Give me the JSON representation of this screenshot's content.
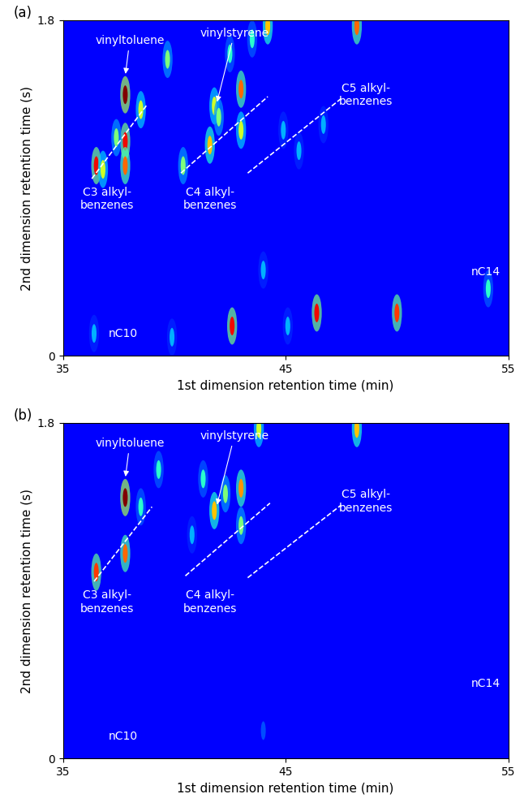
{
  "chart_data": [
    {
      "type": "heatmap",
      "title": "(a)",
      "x_label": "1st dimension retention time (min)",
      "y_label": "2nd dimension retention time (s)",
      "xlim": [
        35,
        55
      ],
      "xticks": [
        35,
        45,
        55
      ],
      "ylim": [
        0,
        1.8
      ],
      "yticks": [
        0,
        1.8
      ],
      "color": "jet",
      "intensity_range": [
        0,
        1
      ],
      "peaks": {
        "x": [
          36.5,
          36.8,
          37.8,
          37.8,
          37.8,
          37.4,
          38.5,
          39.7,
          40.4,
          41.6,
          41.8,
          42.0,
          43.0,
          43.0,
          42.5,
          43.5,
          44.2,
          48.2,
          44.9,
          45.6,
          46.7,
          42.6,
          46.4,
          50.0,
          54.1,
          36.4,
          39.9,
          45.1,
          44.0
        ],
        "y": [
          1.02,
          1.0,
          1.4,
          1.15,
          1.02,
          1.17,
          1.32,
          1.59,
          1.02,
          1.13,
          1.34,
          1.28,
          1.43,
          1.21,
          1.62,
          1.7,
          1.77,
          1.77,
          1.21,
          1.1,
          1.24,
          0.16,
          0.23,
          0.23,
          0.36,
          0.12,
          0.1,
          0.16,
          0.46
        ],
        "intensity": [
          0.9,
          0.6,
          1.0,
          0.9,
          0.8,
          0.5,
          0.6,
          0.5,
          0.5,
          0.7,
          0.6,
          0.5,
          0.8,
          0.6,
          0.4,
          0.4,
          0.7,
          0.8,
          0.3,
          0.3,
          0.3,
          0.9,
          0.9,
          0.85,
          0.4,
          0.3,
          0.3,
          0.3,
          0.3
        ]
      },
      "lines": [
        {
          "x": [
            36.3,
            38.8
          ],
          "y": [
            0.95,
            1.35
          ]
        },
        {
          "x": [
            40.3,
            44.2
          ],
          "y": [
            0.98,
            1.39
          ]
        },
        {
          "x": [
            43.3,
            47.5
          ],
          "y": [
            0.98,
            1.38
          ]
        }
      ],
      "annotations": [
        {
          "text": "vinyltoluene",
          "x": 38.0,
          "y": 1.66,
          "arrow_x": 37.8,
          "arrow_y": 1.5
        },
        {
          "text": "vinylstyrene",
          "x": 42.7,
          "y": 1.7,
          "arrow_x": 41.9,
          "arrow_y": 1.35
        },
        {
          "text": "C3 alkyl-\nbenzenes",
          "x": 37.0,
          "y": 0.84
        },
        {
          "text": "C4 alkyl-\nbenzenes",
          "x": 41.6,
          "y": 0.84
        },
        {
          "text": "C5 alkyl-\nbenzenes",
          "x": 48.6,
          "y": 1.4
        },
        {
          "text": "nC10",
          "x": 37.7,
          "y": 0.12
        },
        {
          "text": "nC14",
          "x": 54.0,
          "y": 0.45
        }
      ]
    },
    {
      "type": "heatmap",
      "title": "(b)",
      "x_label": "1st dimension retention time (min)",
      "y_label": "2nd dimension retention time (s)",
      "xlim": [
        35,
        55
      ],
      "xticks": [
        35,
        45,
        55
      ],
      "ylim": [
        0,
        1.8
      ],
      "yticks": [
        0,
        1.8
      ],
      "color": "jet",
      "intensity_range": [
        0,
        1
      ],
      "peaks": {
        "x": [
          36.5,
          37.8,
          37.8,
          38.5,
          39.3,
          41.8,
          42.3,
          43.0,
          43.0,
          43.8,
          48.2,
          41.3,
          40.8,
          44.0
        ],
        "y": [
          1.0,
          1.4,
          1.1,
          1.35,
          1.55,
          1.33,
          1.42,
          1.45,
          1.25,
          1.77,
          1.77,
          1.5,
          1.2,
          0.15
        ],
        "intensity": [
          0.85,
          1.0,
          0.8,
          0.4,
          0.4,
          0.7,
          0.5,
          0.75,
          0.5,
          0.6,
          0.7,
          0.4,
          0.3,
          0.2
        ]
      },
      "lines": [
        {
          "x": [
            36.4,
            39.0
          ],
          "y": [
            0.95,
            1.35
          ]
        },
        {
          "x": [
            40.5,
            44.3
          ],
          "y": [
            0.98,
            1.37
          ]
        },
        {
          "x": [
            43.3,
            47.5
          ],
          "y": [
            0.97,
            1.36
          ]
        }
      ],
      "annotations": [
        {
          "text": "vinyltoluene",
          "x": 38.0,
          "y": 1.66,
          "arrow_x": 37.8,
          "arrow_y": 1.5
        },
        {
          "text": "vinylstyrene",
          "x": 42.7,
          "y": 1.7,
          "arrow_x": 41.9,
          "arrow_y": 1.35
        },
        {
          "text": "C3 alkyl-\nbenzenes",
          "x": 37.0,
          "y": 0.84
        },
        {
          "text": "C4 alkyl-\nbenzenes",
          "x": 41.6,
          "y": 0.84
        },
        {
          "text": "C5 alkyl-\nbenzenes",
          "x": 48.6,
          "y": 1.38
        },
        {
          "text": "nC10",
          "x": 37.7,
          "y": 0.12
        },
        {
          "text": "nC14",
          "x": 54.0,
          "y": 0.4
        }
      ]
    }
  ]
}
